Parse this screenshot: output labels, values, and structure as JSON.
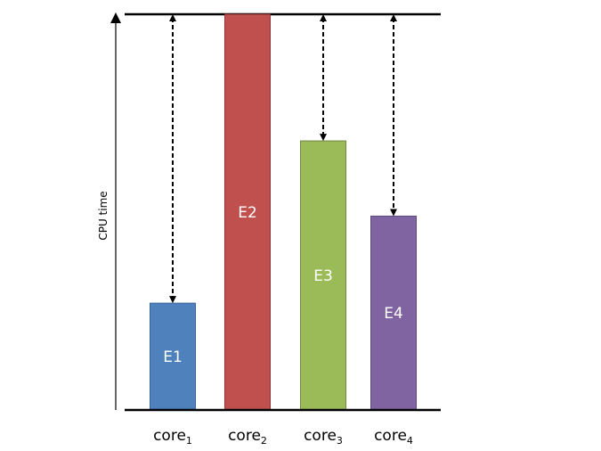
{
  "chart_data": {
    "type": "bar",
    "title": "",
    "xlabel": "",
    "ylabel": "CPU time",
    "ylim": [
      0,
      100
    ],
    "categories": [
      "core1",
      "core2",
      "core3",
      "core4"
    ],
    "category_labels": [
      {
        "base": "core",
        "sub": "1"
      },
      {
        "base": "core",
        "sub": "2"
      },
      {
        "base": "core",
        "sub": "3"
      },
      {
        "base": "core",
        "sub": "4"
      }
    ],
    "series": [
      {
        "values": [
          27,
          100,
          68,
          49
        ],
        "bar_labels": [
          "E1",
          "E2",
          "E3",
          "E4"
        ],
        "colors": [
          "#4f81bd",
          "#c0504d",
          "#9bbb59",
          "#8064a2"
        ],
        "edge_colors": [
          "#3a6496",
          "#8f3633",
          "#72883f",
          "#5e4a7b"
        ]
      }
    ],
    "reference_line": 100,
    "annotations": "dashed double-headed arrows from top of each bar to the reference line (except the tallest bar)",
    "grid": false,
    "legend": "none"
  }
}
